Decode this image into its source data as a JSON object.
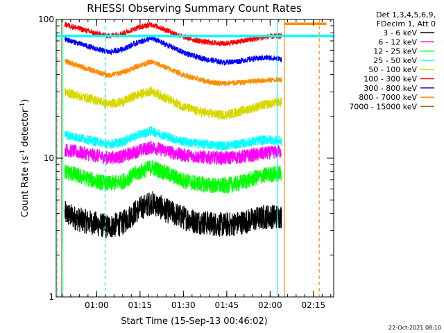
{
  "chart_data": {
    "type": "line",
    "title": "RHESSI Observing Summary Count Rates",
    "xlabel": "Start Time (15-Sep-13 00:46:02)",
    "ylabel_main": "Count Rate (s",
    "ylabel_sup": "-1",
    "ylabel_tail": " detector",
    "ylabel_sup2": "-1",
    "ylabel_end": ")",
    "yscale": "log",
    "ylim": [
      1,
      100
    ],
    "xlim_minutes": [
      0,
      96
    ],
    "y_ticks": [
      {
        "value": 1,
        "label": "1"
      },
      {
        "value": 10,
        "label": "10"
      },
      {
        "value": 100,
        "label": "100"
      }
    ],
    "x_ticks": [
      {
        "minute": 14,
        "label": "01:00"
      },
      {
        "minute": 29,
        "label": "01:15"
      },
      {
        "minute": 44,
        "label": "01:30"
      },
      {
        "minute": 59,
        "label": "01:45"
      },
      {
        "minute": 74,
        "label": "02:00"
      },
      {
        "minute": 89,
        "label": "02:15"
      }
    ],
    "legend_header": [
      "Det 1,3,4,5,6,9,",
      "FDecim 1, Att 0"
    ],
    "footer": "22-Oct-2021 08:10",
    "x_minutes": [
      3,
      8,
      13,
      18,
      23,
      28,
      33,
      38,
      43,
      48,
      53,
      58,
      63,
      68,
      73,
      78
    ],
    "series": [
      {
        "name": "3 - 6 keV",
        "color": "#000000",
        "values": [
          4,
          3.6,
          3.4,
          3.2,
          3.4,
          4.2,
          4.8,
          4.2,
          3.8,
          3.5,
          3.4,
          3.3,
          3.4,
          3.6,
          3.8,
          3.8
        ]
      },
      {
        "name": "6 - 12 keV",
        "color": "#ff00ff",
        "values": [
          11.5,
          11,
          10.5,
          10,
          10.3,
          11.2,
          12,
          11.3,
          10.6,
          10.3,
          10.1,
          10,
          10.2,
          10.5,
          10.9,
          11.2
        ]
      },
      {
        "name": "12 - 25 keV",
        "color": "#00ff00",
        "values": [
          8,
          7.4,
          6.9,
          6.5,
          6.8,
          7.8,
          8.6,
          7.8,
          7,
          6.6,
          6.4,
          6.3,
          6.6,
          7.1,
          7.6,
          7.8
        ]
      },
      {
        "name": "25 - 50 keV",
        "color": "#00ffff",
        "values": [
          14.8,
          14,
          13.3,
          12.6,
          13.1,
          14.6,
          15.7,
          14.4,
          13.3,
          12.8,
          12.5,
          12.3,
          12.6,
          13.2,
          13.6,
          13.3
        ]
      },
      {
        "name": "50 - 100 keV",
        "color": "#d8d800",
        "values": [
          30,
          28,
          26.5,
          24.5,
          25.5,
          28.5,
          30.5,
          27,
          24,
          22,
          21,
          20.5,
          21.5,
          23,
          24.5,
          25.5
        ]
      },
      {
        "name": "100 - 300 keV",
        "color": "#ff0000",
        "values": [
          92,
          86,
          80,
          76,
          79,
          87,
          92,
          84,
          76,
          71,
          68,
          67,
          69,
          72,
          75,
          76
        ]
      },
      {
        "name": "300 - 800 keV",
        "color": "#0000ff",
        "values": [
          72,
          67,
          62,
          58,
          61,
          68,
          73,
          66,
          59,
          54,
          51,
          49,
          50,
          52,
          53,
          52
        ]
      },
      {
        "name": "800 - 7000 keV",
        "color": "#ff8c00",
        "values": [
          50,
          46,
          42.5,
          39.5,
          41.5,
          46,
          49.5,
          45,
          40.5,
          37.5,
          35.5,
          34.5,
          35,
          35.8,
          36.5,
          37
        ]
      },
      {
        "name": "7000 - 15000 keV",
        "color": "#8b7500",
        "values": [
          null,
          null,
          null,
          null,
          null,
          null,
          null,
          null,
          null,
          null,
          null,
          null,
          null,
          null,
          null,
          null
        ]
      }
    ],
    "annotations": [
      {
        "type": "vline",
        "minute": 0.5,
        "color": "#00ffff",
        "style": "dashed"
      },
      {
        "type": "vline",
        "minute": 2.3,
        "color": "#00ffff",
        "style": "solid"
      },
      {
        "type": "vline",
        "minute": 17,
        "color": "#00ffff",
        "style": "dashed"
      },
      {
        "type": "vline",
        "minute": 76.5,
        "color": "#00ffff",
        "style": "solid"
      },
      {
        "type": "vline",
        "minute": 1.8,
        "color": "#ff8c00",
        "style": "solid"
      },
      {
        "type": "vline",
        "minute": 79,
        "color": "#ff8c00",
        "style": "solid"
      },
      {
        "type": "vline",
        "minute": 91,
        "color": "#ff8c00",
        "style": "dashed"
      },
      {
        "type": "hline",
        "value": 76,
        "x_range_minutes": [
          0,
          96
        ],
        "color": "#00ffff"
      },
      {
        "type": "hline",
        "value": 93,
        "x_range_minutes": [
          79,
          93.5
        ],
        "color": "#ff8c00"
      }
    ]
  }
}
